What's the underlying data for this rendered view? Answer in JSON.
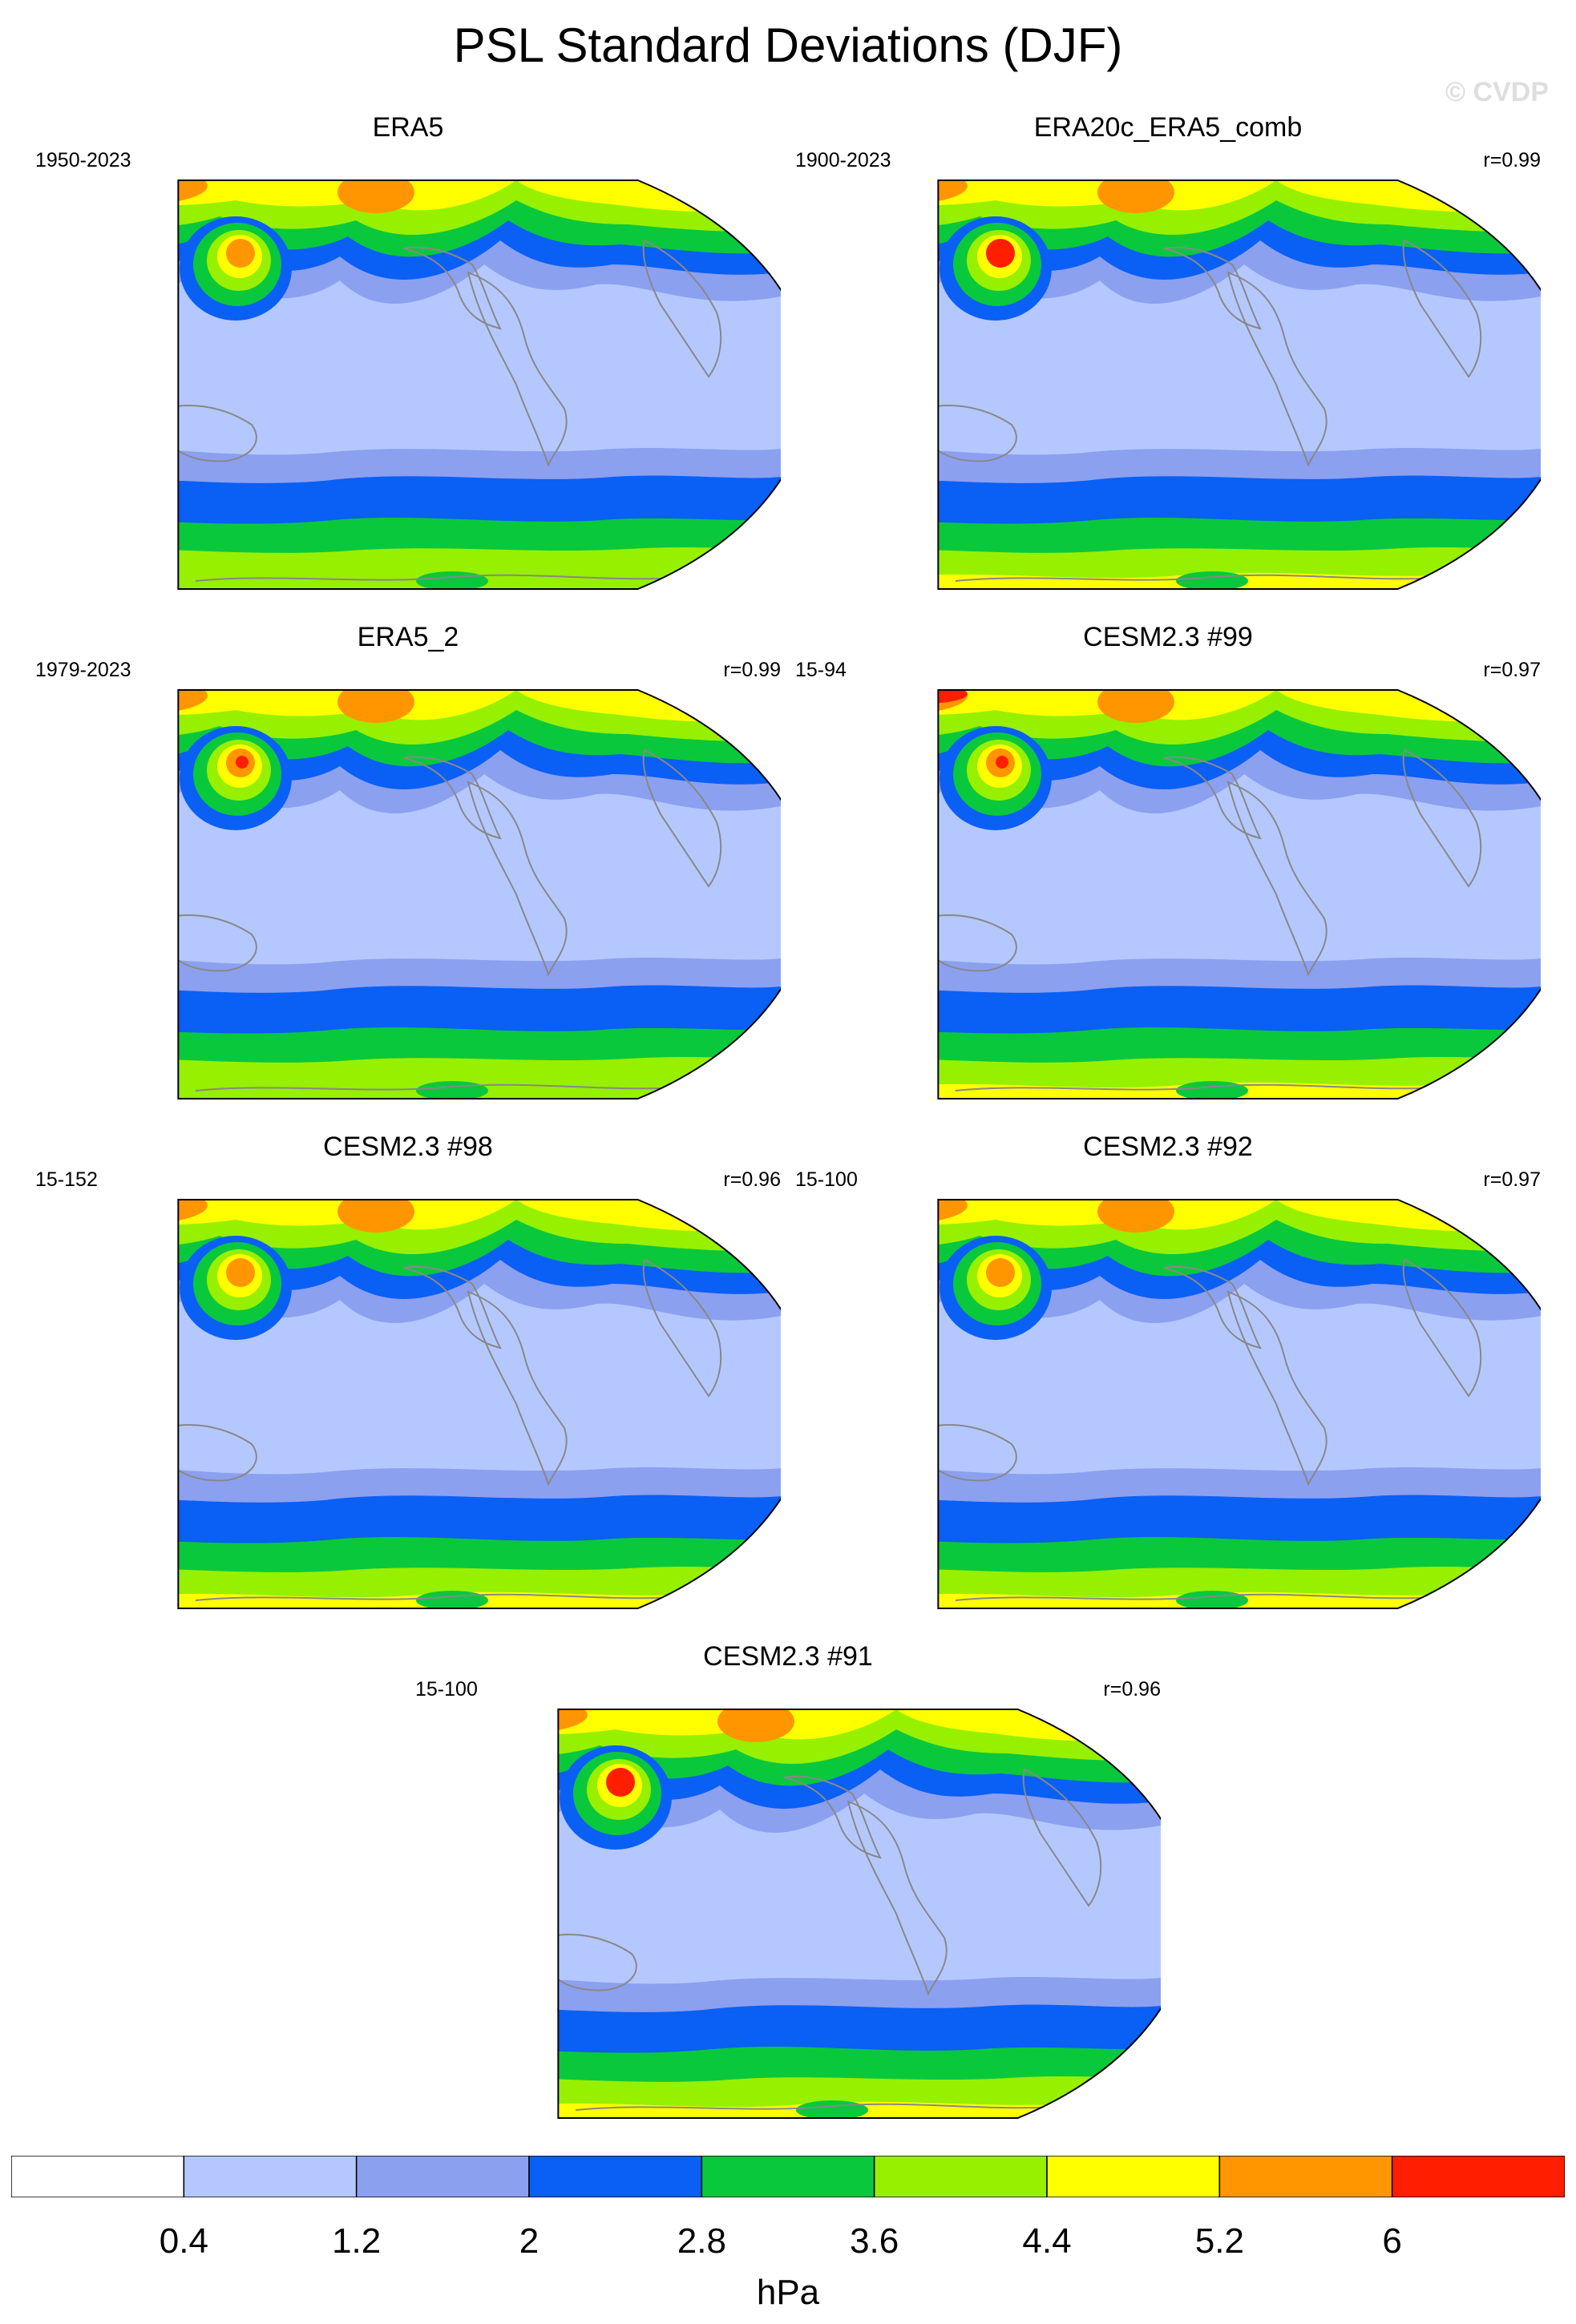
{
  "title": "PSL Standard Deviations (DJF)",
  "watermark": "© CVDP",
  "panels": [
    {
      "title": "ERA5",
      "period": "1950-2023",
      "r": ""
    },
    {
      "title": "ERA20c_ERA5_comb",
      "period": "1900-2023",
      "r": "r=0.99"
    },
    {
      "title": "ERA5_2",
      "period": "1979-2023",
      "r": "r=0.99"
    },
    {
      "title": "CESM2.3 #99",
      "period": "15-94",
      "r": "r=0.97"
    },
    {
      "title": "CESM2.3 #98",
      "period": "15-152",
      "r": "r=0.96"
    },
    {
      "title": "CESM2.3 #92",
      "period": "15-100",
      "r": "r=0.97"
    },
    {
      "title": "CESM2.3 #91",
      "period": "15-100",
      "r": "r=0.96"
    }
  ],
  "colorbar": {
    "labels": [
      "0.4",
      "1.2",
      "2",
      "2.8",
      "3.6",
      "4.4",
      "5.2",
      "6"
    ],
    "colors": [
      "#ffffff",
      "#b4c8ff",
      "#8ca0f0",
      "#0a5ff5",
      "#0ac83c",
      "#96f000",
      "#ffff00",
      "#ff9600",
      "#ff1e00"
    ],
    "units": "hPa"
  }
}
